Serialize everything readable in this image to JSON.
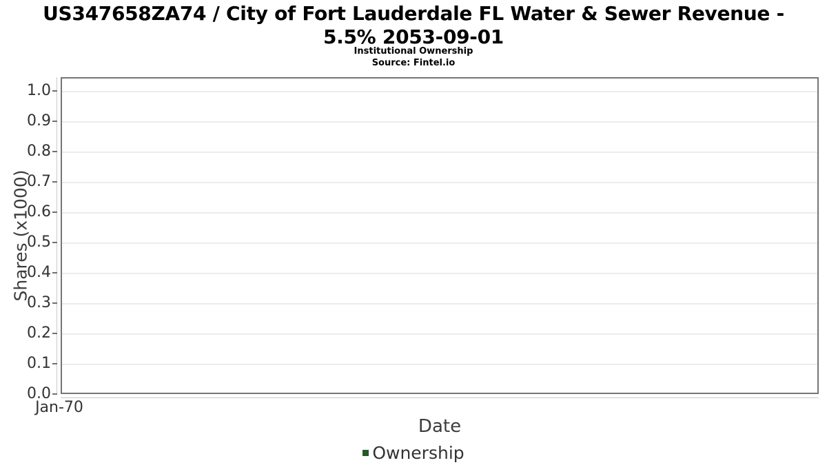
{
  "header": {
    "title": "US347658ZA74 / City of Fort Lauderdale FL Water & Sewer Revenue - 5.5% 2053-09-01",
    "subtitle": "Institutional Ownership",
    "source": "Source: Fintel.io"
  },
  "chart_data": {
    "type": "line",
    "title": "US347658ZA74 / City of Fort Lauderdale FL Water & Sewer Revenue - 5.5% 2053-09-01",
    "subtitle": "Institutional Ownership",
    "source": "Source: Fintel.io",
    "xlabel": "Date",
    "ylabel": "Shares (x1000)",
    "x_tick_labels": [
      "Jan-70"
    ],
    "y_ticks": [
      0.0,
      0.1,
      0.2,
      0.3,
      0.4,
      0.5,
      0.6,
      0.7,
      0.8,
      0.9,
      1.0
    ],
    "ylim": [
      0,
      1.045
    ],
    "grid": true,
    "legend_position": "bottom",
    "series": [
      {
        "name": "Ownership",
        "color": "#25582b",
        "x": [],
        "values": [],
        "note_visible_in_pixels": "plot area is empty - no data points rendered"
      }
    ]
  },
  "colors": {
    "background": "#ffffff",
    "plot_border": "#757575",
    "gridline": "#ececec",
    "axis_line": "#c9c9c9",
    "tick_mark": "#6e6e6e",
    "tick_label": "#333333",
    "axis_title": "#3d3d3d",
    "title_text": "#000000",
    "series_green": "#25582b"
  }
}
